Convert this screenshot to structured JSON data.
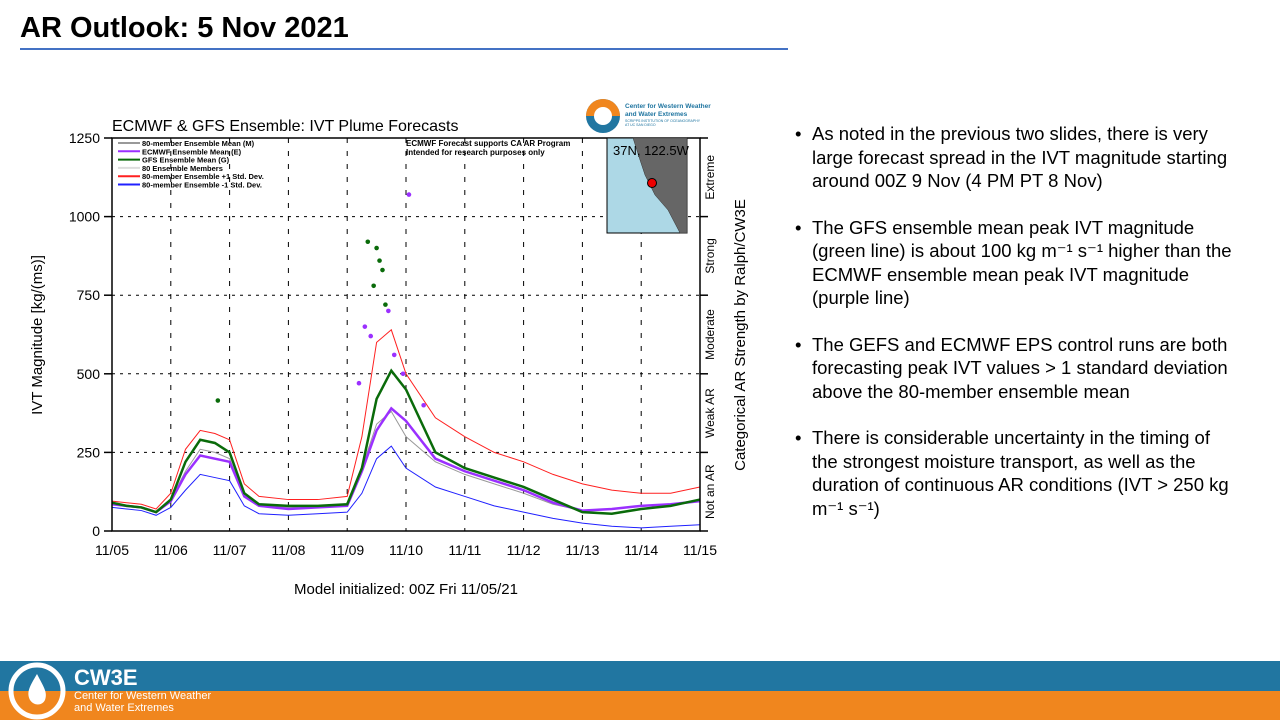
{
  "slide": {
    "title": "AR Outlook: 5 Nov 2021"
  },
  "bullets": [
    "As noted in the previous two slides, there is very large forecast spread in the IVT magnitude starting around 00Z 9 Nov (4 PM PT 8 Nov)",
    "The GFS ensemble mean peak IVT magnitude (green line) is about 100 kg m⁻¹ s⁻¹ higher than the ECMWF ensemble mean peak IVT magnitude (purple line)",
    "The GEFS and ECMWF EPS control runs are both forecasting peak IVT values > 1 standard deviation above the 80-member ensemble mean",
    "There is considerable uncertainty in the timing of the strongest moisture transport, as well as the duration of continuous AR conditions (IVT > 250 kg m⁻¹ s⁻¹)"
  ],
  "footer": {
    "name": "CW3E",
    "line1": "Center for Western Weather",
    "line2": "and Water Extremes",
    "colors": {
      "top": "#2176a1",
      "bottom": "#f0861e"
    }
  },
  "chart_logo": {
    "line1": "Center for Western Weather",
    "line2": "and Water Extremes",
    "line3": "SCRIPPS INSTITUTION OF OCEANOGRAPHY",
    "line4": "AT UC SAN DIEGO"
  },
  "chart_data": {
    "type": "line",
    "title": "ECMWF & GFS Ensemble: IVT Plume Forecasts",
    "xlabel": "Model initialized: 00Z Fri 11/05/21",
    "ylabel": "IVT Magnitude [kg/(ms)]",
    "ylabel_right": "Categorical AR Strength by Ralph/CW3E",
    "note": [
      "ECMWF Forecast supports CA AR Program",
      "Intended for research purposes only"
    ],
    "location": "37N, 122.5W",
    "categories_right": [
      "Not an AR",
      "Weak AR",
      "Moderate",
      "Strong",
      "Extreme"
    ],
    "ylim": [
      0,
      1250
    ],
    "yticks": [
      0,
      250,
      500,
      750,
      1000,
      1250
    ],
    "xticks": [
      "11/05",
      "11/06",
      "11/07",
      "11/08",
      "11/09",
      "11/10",
      "11/11",
      "11/12",
      "11/13",
      "11/14",
      "11/15"
    ],
    "grid": true,
    "legend_placement": "top-left",
    "x_days": [
      0,
      0.25,
      0.5,
      0.75,
      1,
      1.25,
      1.5,
      1.75,
      2,
      2.25,
      2.5,
      3,
      3.5,
      4,
      4.25,
      4.5,
      4.75,
      5,
      5.5,
      6,
      6.5,
      7,
      7.5,
      8,
      8.5,
      9,
      9.5,
      10
    ],
    "series": [
      {
        "name": "80-member Ensemble Mean (M)",
        "color": "#999999",
        "values": [
          85,
          80,
          75,
          60,
          100,
          190,
          260,
          250,
          230,
          110,
          80,
          75,
          80,
          85,
          200,
          340,
          380,
          300,
          220,
          180,
          150,
          120,
          85,
          65,
          70,
          80,
          85,
          95
        ]
      },
      {
        "name": "ECMWF Ensemble Mean (E)",
        "color": "#9b30ff",
        "values": [
          85,
          80,
          75,
          60,
          95,
          180,
          240,
          230,
          220,
          110,
          80,
          70,
          75,
          80,
          190,
          320,
          390,
          350,
          230,
          190,
          160,
          130,
          90,
          65,
          70,
          80,
          85,
          95
        ]
      },
      {
        "name": "GFS Ensemble Mean (G)",
        "color": "#0a6b0a",
        "values": [
          90,
          80,
          75,
          60,
          100,
          220,
          290,
          280,
          250,
          120,
          85,
          80,
          80,
          85,
          200,
          420,
          510,
          450,
          250,
          200,
          170,
          140,
          100,
          60,
          55,
          70,
          80,
          100
        ]
      },
      {
        "name": "80 Ensemble Members",
        "color": "#dddddd",
        "values": []
      },
      {
        "name": "80-member Ensemble +1 Std. Dev.",
        "color": "#ff2020",
        "values": [
          95,
          90,
          85,
          70,
          120,
          260,
          320,
          310,
          290,
          150,
          110,
          100,
          100,
          110,
          300,
          600,
          640,
          500,
          360,
          300,
          250,
          220,
          180,
          150,
          130,
          120,
          120,
          140
        ]
      },
      {
        "name": "80-member Ensemble -1 Std. Dev.",
        "color": "#2020ff",
        "values": [
          75,
          70,
          65,
          50,
          75,
          130,
          180,
          170,
          160,
          80,
          55,
          50,
          55,
          60,
          120,
          230,
          270,
          200,
          140,
          110,
          80,
          60,
          40,
          25,
          15,
          10,
          15,
          20
        ]
      }
    ],
    "control_points": [
      {
        "color": "#0a6b0a",
        "x_days": [
          4.35,
          4.45,
          4.5,
          4.55,
          4.6,
          4.65,
          1.8
        ],
        "values": [
          920,
          780,
          900,
          860,
          830,
          720,
          415
        ]
      },
      {
        "color": "#9b30ff",
        "values": [
          1070,
          700,
          650,
          620,
          560,
          500,
          470,
          400
        ],
        "x_days": [
          5.05,
          4.7,
          4.3,
          4.4,
          4.8,
          4.95,
          4.2,
          5.3
        ]
      }
    ]
  }
}
